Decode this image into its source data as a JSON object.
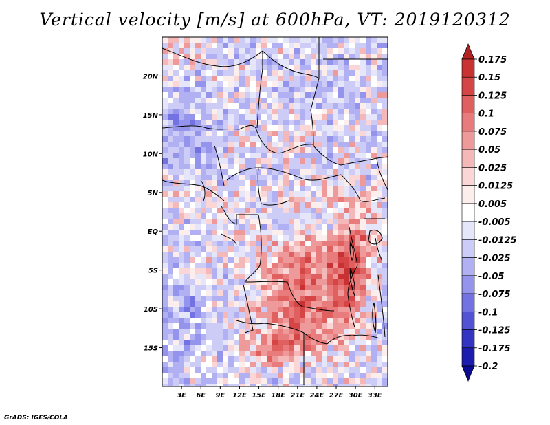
{
  "title": "Vertical velocity [m/s] at 600hPa, VT: 2019120312",
  "credit": "GrADS: IGES/COLA",
  "map": {
    "lon_range": [
      0,
      35
    ],
    "lat_range": [
      -20,
      25
    ],
    "x_ticks": [
      "3E",
      "6E",
      "9E",
      "12E",
      "15E",
      "18E",
      "21E",
      "24E",
      "27E",
      "30E",
      "33E"
    ],
    "y_ticks": [
      "20N",
      "15N",
      "10N",
      "5N",
      "EQ",
      "5S",
      "10S",
      "15S"
    ]
  },
  "colorbar": {
    "labels": [
      "0.175",
      "0.15",
      "0.125",
      "0.1",
      "0.075",
      "0.05",
      "0.025",
      "0.0125",
      "0.005",
      "-0.005",
      "-0.0125",
      "-0.025",
      "-0.05",
      "-0.075",
      "-0.1",
      "-0.125",
      "-0.175",
      "-0.2"
    ],
    "colors": [
      "#b22222",
      "#c83232",
      "#d64545",
      "#e06060",
      "#e87c7c",
      "#ef9a9a",
      "#f5b8b8",
      "#fad6d6",
      "#fdeeee",
      "#ffffff",
      "#e6e6fb",
      "#ccccf7",
      "#b0b0f2",
      "#9494ec",
      "#7272e2",
      "#5252d4",
      "#3434c2",
      "#1c1cae",
      "#0a0a96"
    ]
  }
}
